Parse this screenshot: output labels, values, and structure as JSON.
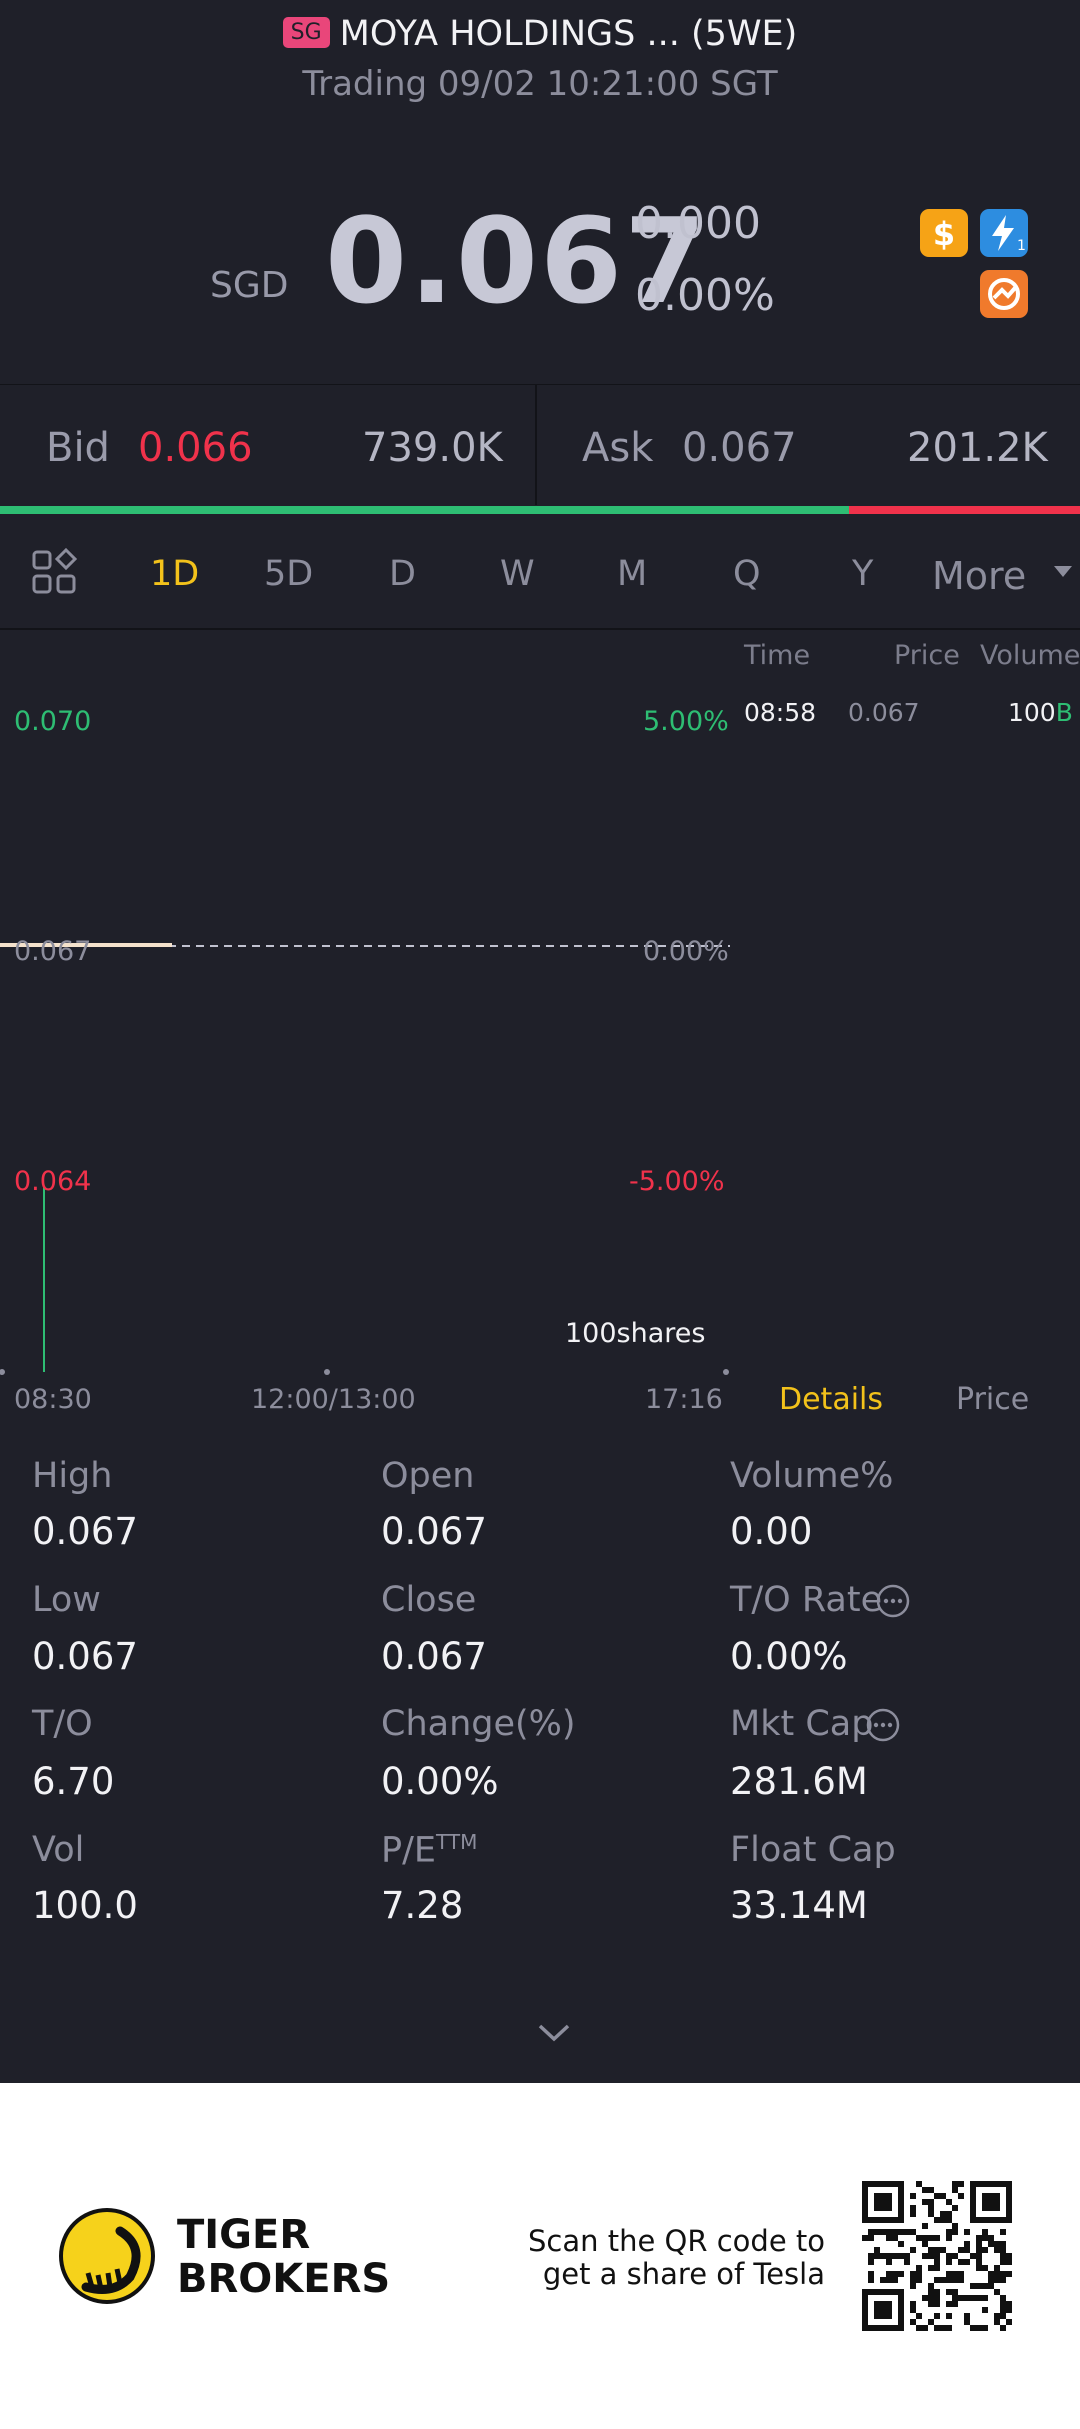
{
  "header": {
    "market_badge": "SG",
    "title": "MOYA HOLDINGS ... (5WE)",
    "status": "Trading 09/02 10:21:00 SGT"
  },
  "quote": {
    "currency": "SGD",
    "price": "0.067",
    "change": "0.000",
    "change_pct": "0.00%",
    "icons": [
      "dollar-icon",
      "lightning-icon",
      "orange-exchange-icon"
    ]
  },
  "bid_ask": {
    "bid_label": "Bid",
    "bid_price": "0.066",
    "bid_volume": "739.0K",
    "ask_label": "Ask",
    "ask_price": "0.067",
    "ask_volume": "201.2K",
    "bid_share": 0.786
  },
  "tabs": {
    "items": [
      "1D",
      "5D",
      "D",
      "W",
      "M",
      "Q",
      "Y"
    ],
    "active": "1D",
    "more_label": "More"
  },
  "chart": {
    "y_high": "0.070",
    "y_mid": "0.067",
    "y_low": "0.064",
    "pct_high": "5.00%",
    "pct_mid": "0.00%",
    "pct_low": "-5.00%",
    "x_start": "08:30",
    "x_mid": "12:00/13:00",
    "x_end": "17:16",
    "volume_label": "100shares"
  },
  "trades": {
    "headers": [
      "Time",
      "Price",
      "Volume"
    ],
    "rows": [
      {
        "time": "08:58",
        "price": "0.067",
        "volume": "100",
        "side": "B"
      }
    ],
    "tab_details": "Details",
    "tab_price": "Price"
  },
  "stats": {
    "high_label": "High",
    "high": "0.067",
    "open_label": "Open",
    "open": "0.067",
    "volume_pct_label": "Volume%",
    "volume_pct": "0.00",
    "low_label": "Low",
    "low": "0.067",
    "close_label": "Close",
    "close": "0.067",
    "to_rate_label": "T/O Rate",
    "to_rate": "0.00%",
    "to_label": "T/O",
    "to": "6.70",
    "change_label": "Change(%)",
    "change": "0.00%",
    "mkt_cap_label": "Mkt Cap",
    "mkt_cap": "281.6M",
    "vol_label": "Vol",
    "vol": "100.0",
    "pe_label": "P/E",
    "pe_sup": "TTM",
    "pe": "7.28",
    "float_cap_label": "Float Cap",
    "float_cap": "33.14M"
  },
  "footer": {
    "brand_line1": "TIGER",
    "brand_line2": "BROKERS",
    "promo_line1": "Scan the QR code to",
    "promo_line2": "get a share of Tesla"
  },
  "colors": {
    "background": "#1f2029",
    "up_green": "#2ebd73",
    "down_red": "#f0324b",
    "accent_gold": "#f3c21b"
  }
}
